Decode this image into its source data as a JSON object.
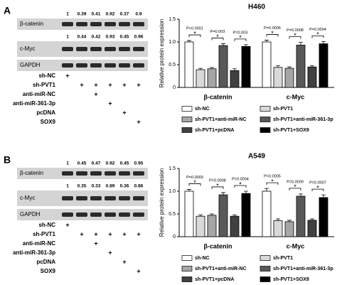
{
  "panels": [
    {
      "label": "A",
      "blot": {
        "rows": [
          {
            "label": "β-catenin",
            "numbers": [
              1,
              0.39,
              0.41,
              0.92,
              0.37,
              0.9
            ]
          },
          {
            "label": "c-Myc",
            "numbers": [
              1,
              0.44,
              0.42,
              0.93,
              0.45,
              0.96
            ]
          },
          {
            "label": "GAPDH"
          }
        ],
        "treatments": [
          {
            "name": "sh-NC",
            "marks": [
              "+",
              null,
              null,
              null,
              null,
              null
            ]
          },
          {
            "name": "sh-PVT1",
            "marks": [
              null,
              "+",
              "+",
              "+",
              "+",
              "+"
            ]
          },
          {
            "name": "anti-miR-NC",
            "marks": [
              null,
              null,
              "+",
              null,
              null,
              null
            ]
          },
          {
            "name": "anti-miR-361-3p",
            "marks": [
              null,
              null,
              null,
              "+",
              null,
              null
            ]
          },
          {
            "name": "pcDNA",
            "marks": [
              null,
              null,
              null,
              null,
              "+",
              null
            ]
          },
          {
            "name": "SOX9",
            "marks": [
              null,
              null,
              null,
              null,
              null,
              "+"
            ]
          }
        ]
      }
    },
    {
      "label": "B",
      "blot": {
        "rows": [
          {
            "label": "β-catenin",
            "numbers": [
              1,
              0.45,
              0.47,
              0.92,
              0.45,
              0.95
            ]
          },
          {
            "label": "c-Myc",
            "numbers": [
              1,
              0.35,
              0.33,
              0.89,
              0.36,
              0.86
            ]
          },
          {
            "label": "GAPDH"
          }
        ],
        "treatments": [
          {
            "name": "sh-NC",
            "marks": [
              "+",
              null,
              null,
              null,
              null,
              null
            ]
          },
          {
            "name": "sh-PVT1",
            "marks": [
              null,
              "+",
              "+",
              "+",
              "+",
              "+"
            ]
          },
          {
            "name": "anti-miR-NC",
            "marks": [
              null,
              null,
              "+",
              null,
              null,
              null
            ]
          },
          {
            "name": "anti-miR-361-3p",
            "marks": [
              null,
              null,
              null,
              "+",
              null,
              null
            ]
          },
          {
            "name": "pcDNA",
            "marks": [
              null,
              null,
              null,
              null,
              "+",
              null
            ]
          },
          {
            "name": "SOX9",
            "marks": [
              null,
              null,
              null,
              null,
              null,
              "+"
            ]
          }
        ]
      }
    }
  ],
  "chart_data": [
    {
      "type": "bar",
      "title": "H460",
      "y_label": "Relative protein expression",
      "categories": [
        "β-catenin",
        "c-Myc"
      ],
      "ylim": [
        0,
        1.5
      ],
      "yticks": [
        0,
        0.5,
        {
          "value": 1,
          "label": "1.0"
        },
        1.5
      ],
      "series": [
        {
          "name": "sh-NC",
          "color": "#ffffff",
          "values": [
            1.0,
            1.0
          ],
          "errors": [
            0.03,
            0.04
          ]
        },
        {
          "name": "sh-PVT1",
          "color": "#d9d9d9",
          "values": [
            0.39,
            0.44
          ],
          "errors": [
            0.03,
            0.04
          ]
        },
        {
          "name": "sh-PVT1+anti-miR-NC",
          "color": "#a6a6a6",
          "values": [
            0.41,
            0.42
          ],
          "errors": [
            0.03,
            0.03
          ]
        },
        {
          "name": "sh-PVT1+anti-miR-361-3p",
          "color": "#595959",
          "values": [
            0.92,
            0.93
          ],
          "errors": [
            0.04,
            0.06
          ]
        },
        {
          "name": "sh-PVT1+pcDNA",
          "color": "#404040",
          "values": [
            0.37,
            0.45
          ],
          "errors": [
            0.04,
            0.03
          ]
        },
        {
          "name": "sh-PVT1+SOX9",
          "color": "#000000",
          "values": [
            0.9,
            0.96
          ],
          "errors": [
            0.04,
            0.05
          ]
        }
      ],
      "annotations": [
        [
          "P<0.0001",
          "P=0.003",
          "P=0.003"
        ],
        [
          "P=0.0006",
          "P=0.0008",
          "P=0.0004"
        ]
      ],
      "sig_marker": "*"
    },
    {
      "type": "bar",
      "title": "A549",
      "y_label": "Relative protein expression",
      "categories": [
        "β-catenin",
        "c-Myc"
      ],
      "ylim": [
        0,
        1.5
      ],
      "yticks": [
        0,
        0.5,
        {
          "value": 1,
          "label": "1.0"
        },
        1.5
      ],
      "series": [
        {
          "name": "sh-NC",
          "color": "#ffffff",
          "values": [
            1.0,
            1.0
          ],
          "errors": [
            0.04,
            0.06
          ]
        },
        {
          "name": "sh-PVT1",
          "color": "#d9d9d9",
          "values": [
            0.45,
            0.35
          ],
          "errors": [
            0.03,
            0.04
          ]
        },
        {
          "name": "sh-PVT1+anti-miR-NC",
          "color": "#a6a6a6",
          "values": [
            0.47,
            0.33
          ],
          "errors": [
            0.03,
            0.03
          ]
        },
        {
          "name": "sh-PVT1+anti-miR-361-3p",
          "color": "#595959",
          "values": [
            0.92,
            0.89
          ],
          "errors": [
            0.05,
            0.05
          ]
        },
        {
          "name": "sh-PVT1+pcDNA",
          "color": "#404040",
          "values": [
            0.45,
            0.36
          ],
          "errors": [
            0.03,
            0.03
          ]
        },
        {
          "name": "sh-PVT1+SOX9",
          "color": "#000000",
          "values": [
            0.95,
            0.86
          ],
          "errors": [
            0.05,
            0.06
          ]
        }
      ],
      "annotations": [
        [
          "P=0.0003",
          "P=0.0008",
          "P=0.0004"
        ],
        [
          "P=0.0005",
          "P=0.0009",
          "P=0.0007"
        ]
      ],
      "sig_marker": "*"
    }
  ]
}
